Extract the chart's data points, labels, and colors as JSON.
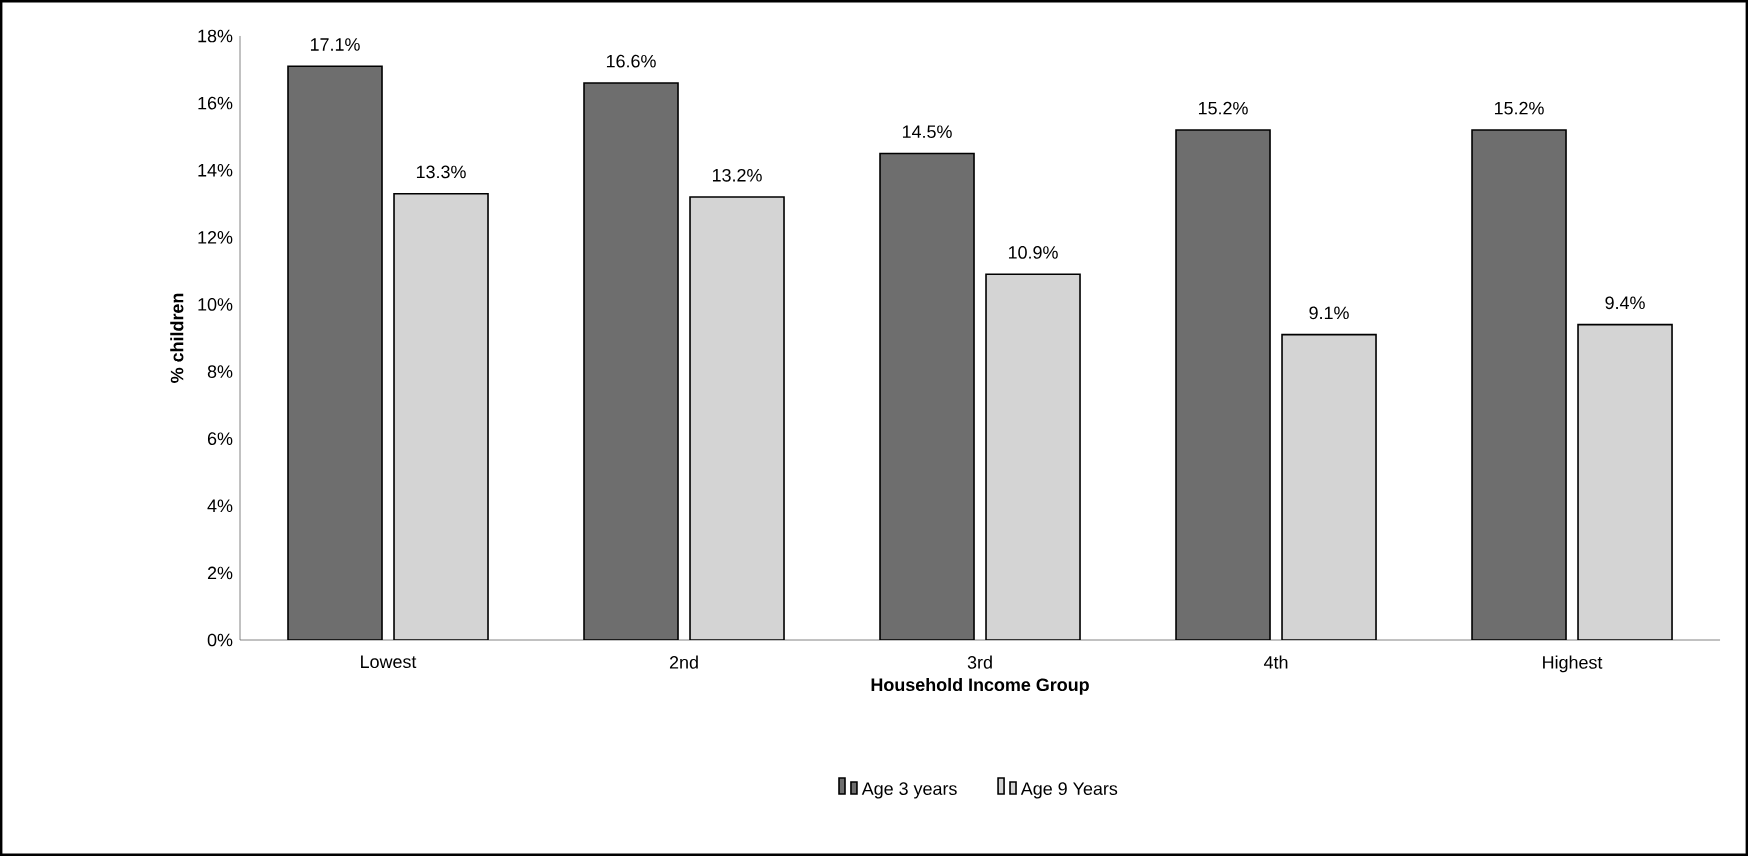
{
  "chart_data": {
    "type": "bar",
    "xlabel": "Household Income Group",
    "ylabel": "% children",
    "categories": [
      "Lowest",
      "2nd",
      "3rd",
      "4th",
      "Highest"
    ],
    "series": [
      {
        "name": "Age 3 years",
        "color": "#6e6e6e",
        "values": [
          17.1,
          16.6,
          14.5,
          15.2,
          15.2
        ],
        "value_labels": [
          "17.1%",
          "16.6%",
          "14.5%",
          "15.2%",
          "15.2%"
        ]
      },
      {
        "name": "Age 9 Years",
        "color": "#d4d4d4",
        "values": [
          13.3,
          13.2,
          10.9,
          9.1,
          9.4
        ],
        "value_labels": [
          "13.3%",
          "13.2%",
          "10.9%",
          "9.1%",
          "9.4%"
        ]
      }
    ],
    "ylim": [
      0,
      18
    ],
    "yticks": [
      {
        "value": 0,
        "label": "0%"
      },
      {
        "value": 2,
        "label": "2%"
      },
      {
        "value": 4,
        "label": "4%"
      },
      {
        "value": 6,
        "label": "6%"
      },
      {
        "value": 8,
        "label": "8%"
      },
      {
        "value": 10,
        "label": "10%"
      },
      {
        "value": 12,
        "label": "12%"
      },
      {
        "value": 14,
        "label": "14%"
      },
      {
        "value": 16,
        "label": "16%"
      },
      {
        "value": 18,
        "label": "18%"
      }
    ],
    "grid": false,
    "legend": "bottom"
  }
}
